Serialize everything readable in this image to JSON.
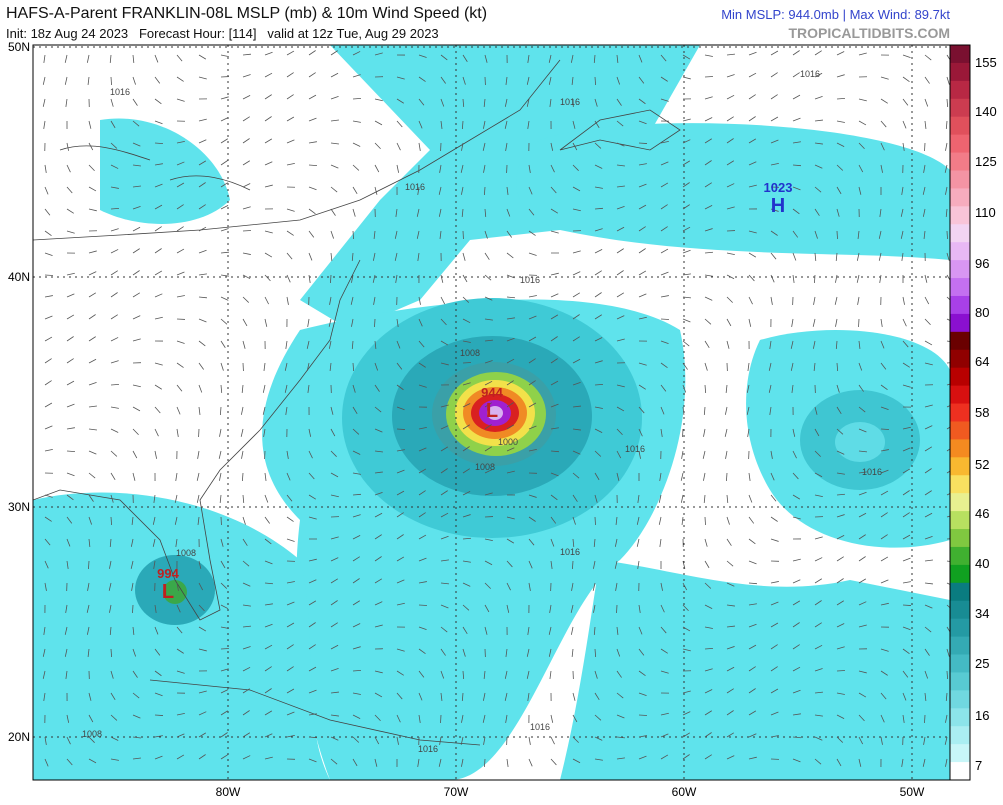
{
  "header": {
    "title": "HAFS-A-Parent FRANKLIN-08L MSLP (mb) & 10m Wind Speed (kt)",
    "subtitle": "Init: 18z Aug 24 2023   Forecast Hour: [114]   valid at 12z Tue, Aug 29 2023",
    "stats": "Min MSLP: 944.0mb | Max Wind: 89.7kt",
    "source": "TROPICALTIDBITS.COM"
  },
  "map": {
    "lat_labels": [
      "50N",
      "40N",
      "30N",
      "20N"
    ],
    "lon_labels": [
      "80W",
      "70W",
      "60W",
      "50W"
    ],
    "pressure_centers": [
      {
        "value": "1023",
        "symbol": "H"
      },
      {
        "value": "944",
        "symbol": "L"
      },
      {
        "value": "994",
        "symbol": "L"
      }
    ],
    "isobar_labels": [
      "1016",
      "1016",
      "1016",
      "1016",
      "1016",
      "1008",
      "1008",
      "1000",
      "1016",
      "1016",
      "1016",
      "1008",
      "1016",
      "1016",
      "1008"
    ]
  },
  "colorbar": {
    "labels": [
      155,
      140,
      125,
      110,
      96,
      80,
      64,
      58,
      52,
      46,
      40,
      34,
      25,
      16,
      7
    ]
  }
}
